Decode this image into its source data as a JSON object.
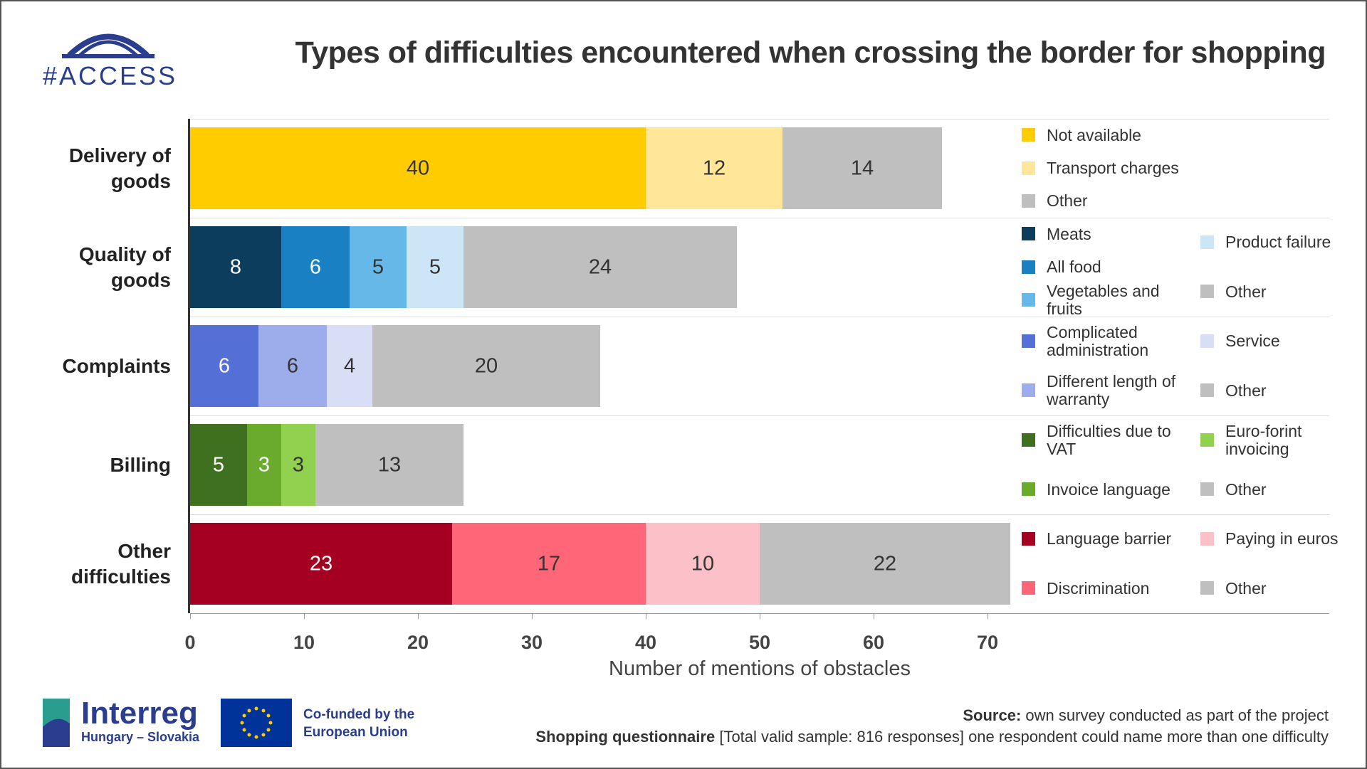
{
  "header": {
    "logo": "#ACCESS"
  },
  "chart_data": {
    "type": "bar",
    "orientation": "horizontal",
    "stacked": true,
    "title": "Types of difficulties encountered when crossing the border for shopping",
    "x_label": "Number of mentions of obstacles",
    "xlim": [
      0,
      100
    ],
    "xticks": [
      0,
      10,
      20,
      30,
      40,
      50,
      60,
      70
    ],
    "groups": [
      {
        "category": "Delivery of goods",
        "segments": [
          {
            "name": "Not available",
            "color": "#ffcc00",
            "value": 40
          },
          {
            "name": "Transport charges",
            "color": "#ffe699",
            "value": 12
          },
          {
            "name": "Other",
            "color": "#bfbfbf",
            "value": 14
          }
        ]
      },
      {
        "category": "Quality of goods",
        "segments": [
          {
            "name": "Meats",
            "color": "#0d3d5c",
            "value": 8
          },
          {
            "name": "All food",
            "color": "#1a80c4",
            "value": 6
          },
          {
            "name": "Vegetables and fruits",
            "color": "#66b8e8",
            "value": 5
          },
          {
            "name": "Product failure",
            "color": "#cce6f7",
            "value": 5
          },
          {
            "name": "Other",
            "color": "#bfbfbf",
            "value": 24
          }
        ]
      },
      {
        "category": "Complaints",
        "segments": [
          {
            "name": "Complicated administration",
            "color": "#5470d6",
            "value": 6
          },
          {
            "name": "Different length of warranty",
            "color": "#9dacea",
            "value": 6
          },
          {
            "name": "Service",
            "color": "#d9def7",
            "value": 4
          },
          {
            "name": "Other",
            "color": "#bfbfbf",
            "value": 20
          }
        ]
      },
      {
        "category": "Billing",
        "segments": [
          {
            "name": "Difficulties due to VAT",
            "color": "#3f7020",
            "value": 5
          },
          {
            "name": "Invoice language",
            "color": "#6aab2e",
            "value": 3
          },
          {
            "name": "Euro-forint invoicing",
            "color": "#92d050",
            "value": 3
          },
          {
            "name": "Other",
            "color": "#bfbfbf",
            "value": 13
          }
        ]
      },
      {
        "category": "Other difficulties",
        "segments": [
          {
            "name": "Language barrier",
            "color": "#a50021",
            "value": 23
          },
          {
            "name": "Discrimination",
            "color": "#ff6677",
            "value": 17
          },
          {
            "name": "Paying in euros",
            "color": "#fcc0c8",
            "value": 10
          },
          {
            "name": "Other",
            "color": "#bfbfbf",
            "value": 22
          }
        ]
      }
    ]
  },
  "footer": {
    "interreg": "Interreg",
    "region": "Hungary – Slovakia",
    "cofunded": "Co-funded by the European Union",
    "source_label": "Source:",
    "source_text": "own survey conducted as part of the project",
    "sample_label": "Shopping questionnaire",
    "sample_text": "[Total valid sample: 816 responses] one respondent could name more than one difficulty"
  }
}
